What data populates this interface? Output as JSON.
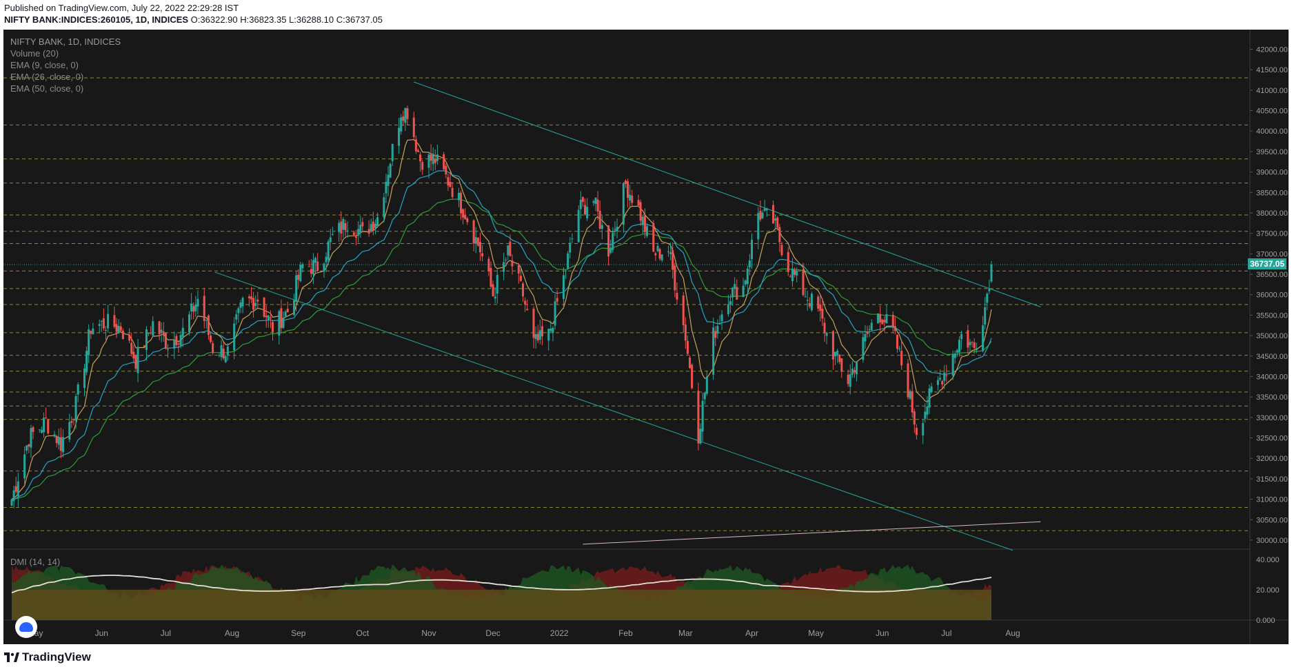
{
  "header": {
    "published": "Published on TradingView.com, July 22, 2022 22:29:28 IST",
    "symbol": "NIFTY BANK:INDICES:260105, 1D, INDICES",
    "ohlc": "O:36322.90 H:36823.35 L:36288.10 C:36737.05"
  },
  "legend": {
    "title": "NIFTY BANK, 1D, INDICES",
    "items": [
      "Volume (20)",
      "EMA (9, close, 0)",
      "EMA (26, close, 0)",
      "EMA (50, close, 0)"
    ]
  },
  "dmi_label": "DMI (14, 14)",
  "footer": {
    "brand": "TradingView"
  },
  "colors": {
    "up": "#26a69a",
    "down": "#ef5350",
    "background": "#181818",
    "trendline": "#26a69a",
    "dashed_levels": "#8a8a2a"
  },
  "chart_data": {
    "type": "candlestick",
    "series": [
      {
        "name": "EMA (9, close, 0)",
        "color": "#c8a25a"
      },
      {
        "name": "EMA (26, close, 0)",
        "color": "#26a6c7"
      },
      {
        "name": "EMA (50, close, 0)",
        "color": "#2e9e3a"
      }
    ],
    "price_axis": {
      "ticks": [
        "42000.00",
        "41500.00",
        "41000.00",
        "40500.00",
        "40000.00",
        "39500.00",
        "39000.00",
        "38500.00",
        "38000.00",
        "37500.00",
        "37000.00",
        "36500.00",
        "36000.00",
        "35500.00",
        "35000.00",
        "34500.00",
        "34000.00",
        "33500.00",
        "33000.00",
        "32500.00",
        "32000.00",
        "31500.00",
        "31000.00",
        "30500.00",
        "30000.00"
      ],
      "range": [
        29780,
        42480
      ],
      "last_price": "36737.05"
    },
    "time_axis": {
      "labels": [
        "May",
        "Jun",
        "Jul",
        "Aug",
        "Sep",
        "Oct",
        "Nov",
        "Dec",
        "2022",
        "Feb",
        "Mar",
        "Apr",
        "May",
        "Jun",
        "Jul",
        "Aug"
      ]
    },
    "dmi_axis": {
      "ticks": [
        "40.000",
        "20.000",
        "0.000"
      ],
      "range": [
        0,
        44
      ]
    },
    "anchor_closes": [
      [
        "2021-04-20",
        31000
      ],
      [
        "2021-04-28",
        32500
      ],
      [
        "2021-05-06",
        32900
      ],
      [
        "2021-05-13",
        32350
      ],
      [
        "2021-05-20",
        33300
      ],
      [
        "2021-05-27",
        35200
      ],
      [
        "2021-06-03",
        35300
      ],
      [
        "2021-06-10",
        35200
      ],
      [
        "2021-06-17",
        34400
      ],
      [
        "2021-06-25",
        35300
      ],
      [
        "2021-07-02",
        34800
      ],
      [
        "2021-07-09",
        35100
      ],
      [
        "2021-07-16",
        35900
      ],
      [
        "2021-07-23",
        34700
      ],
      [
        "2021-07-30",
        34600
      ],
      [
        "2021-08-06",
        35800
      ],
      [
        "2021-08-13",
        35900
      ],
      [
        "2021-08-20",
        35200
      ],
      [
        "2021-08-27",
        35600
      ],
      [
        "2021-09-03",
        36700
      ],
      [
        "2021-09-10",
        36700
      ],
      [
        "2021-09-17",
        37400
      ],
      [
        "2021-09-24",
        37800
      ],
      [
        "2021-10-01",
        37500
      ],
      [
        "2021-10-08",
        37900
      ],
      [
        "2021-10-14",
        39300
      ],
      [
        "2021-10-19",
        40500
      ],
      [
        "2021-10-22",
        40500
      ],
      [
        "2021-10-28",
        39300
      ],
      [
        "2021-11-04",
        39300
      ],
      [
        "2021-11-11",
        38700
      ],
      [
        "2021-11-18",
        38000
      ],
      [
        "2021-11-25",
        37100
      ],
      [
        "2021-12-01",
        36000
      ],
      [
        "2021-12-08",
        37000
      ],
      [
        "2021-12-15",
        36000
      ],
      [
        "2021-12-20",
        34800
      ],
      [
        "2021-12-27",
        35000
      ],
      [
        "2022-01-03",
        36400
      ],
      [
        "2022-01-10",
        38100
      ],
      [
        "2022-01-17",
        38300
      ],
      [
        "2022-01-24",
        37100
      ],
      [
        "2022-02-01",
        38700
      ],
      [
        "2022-02-07",
        38100
      ],
      [
        "2022-02-14",
        37000
      ],
      [
        "2022-02-21",
        37100
      ],
      [
        "2022-03-01",
        35000
      ],
      [
        "2022-03-07",
        32600
      ],
      [
        "2022-03-14",
        35000
      ],
      [
        "2022-03-21",
        36000
      ],
      [
        "2022-03-28",
        36200
      ],
      [
        "2022-04-04",
        38000
      ],
      [
        "2022-04-11",
        37800
      ],
      [
        "2022-04-18",
        36700
      ],
      [
        "2022-04-25",
        36100
      ],
      [
        "2022-05-02",
        35600
      ],
      [
        "2022-05-09",
        34600
      ],
      [
        "2022-05-16",
        33900
      ],
      [
        "2022-05-23",
        34800
      ],
      [
        "2022-05-30",
        35600
      ],
      [
        "2022-06-06",
        35100
      ],
      [
        "2022-06-13",
        33700
      ],
      [
        "2022-06-17",
        32700
      ],
      [
        "2022-06-24",
        33600
      ],
      [
        "2022-07-01",
        34200
      ],
      [
        "2022-07-08",
        35000
      ],
      [
        "2022-07-14",
        34700
      ],
      [
        "2022-07-19",
        35700
      ],
      [
        "2022-07-22",
        36737.05
      ]
    ],
    "levels": [
      41300,
      40150,
      39320,
      38730,
      37950,
      37550,
      37250,
      36580,
      36150,
      35760,
      35070,
      34520,
      34130,
      33620,
      33280,
      32950,
      31690,
      30800,
      30230
    ],
    "trendlines": [
      {
        "from": [
          "2021-10-25",
          41200
        ],
        "to": [
          "2022-08-14",
          35700
        ]
      },
      {
        "from": [
          "2021-07-24",
          36550
        ],
        "to": [
          "2022-08-01",
          29750
        ]
      },
      {
        "from": [
          "2022-01-12",
          29900
        ],
        "to": [
          "2022-08-14",
          30450
        ]
      }
    ]
  }
}
